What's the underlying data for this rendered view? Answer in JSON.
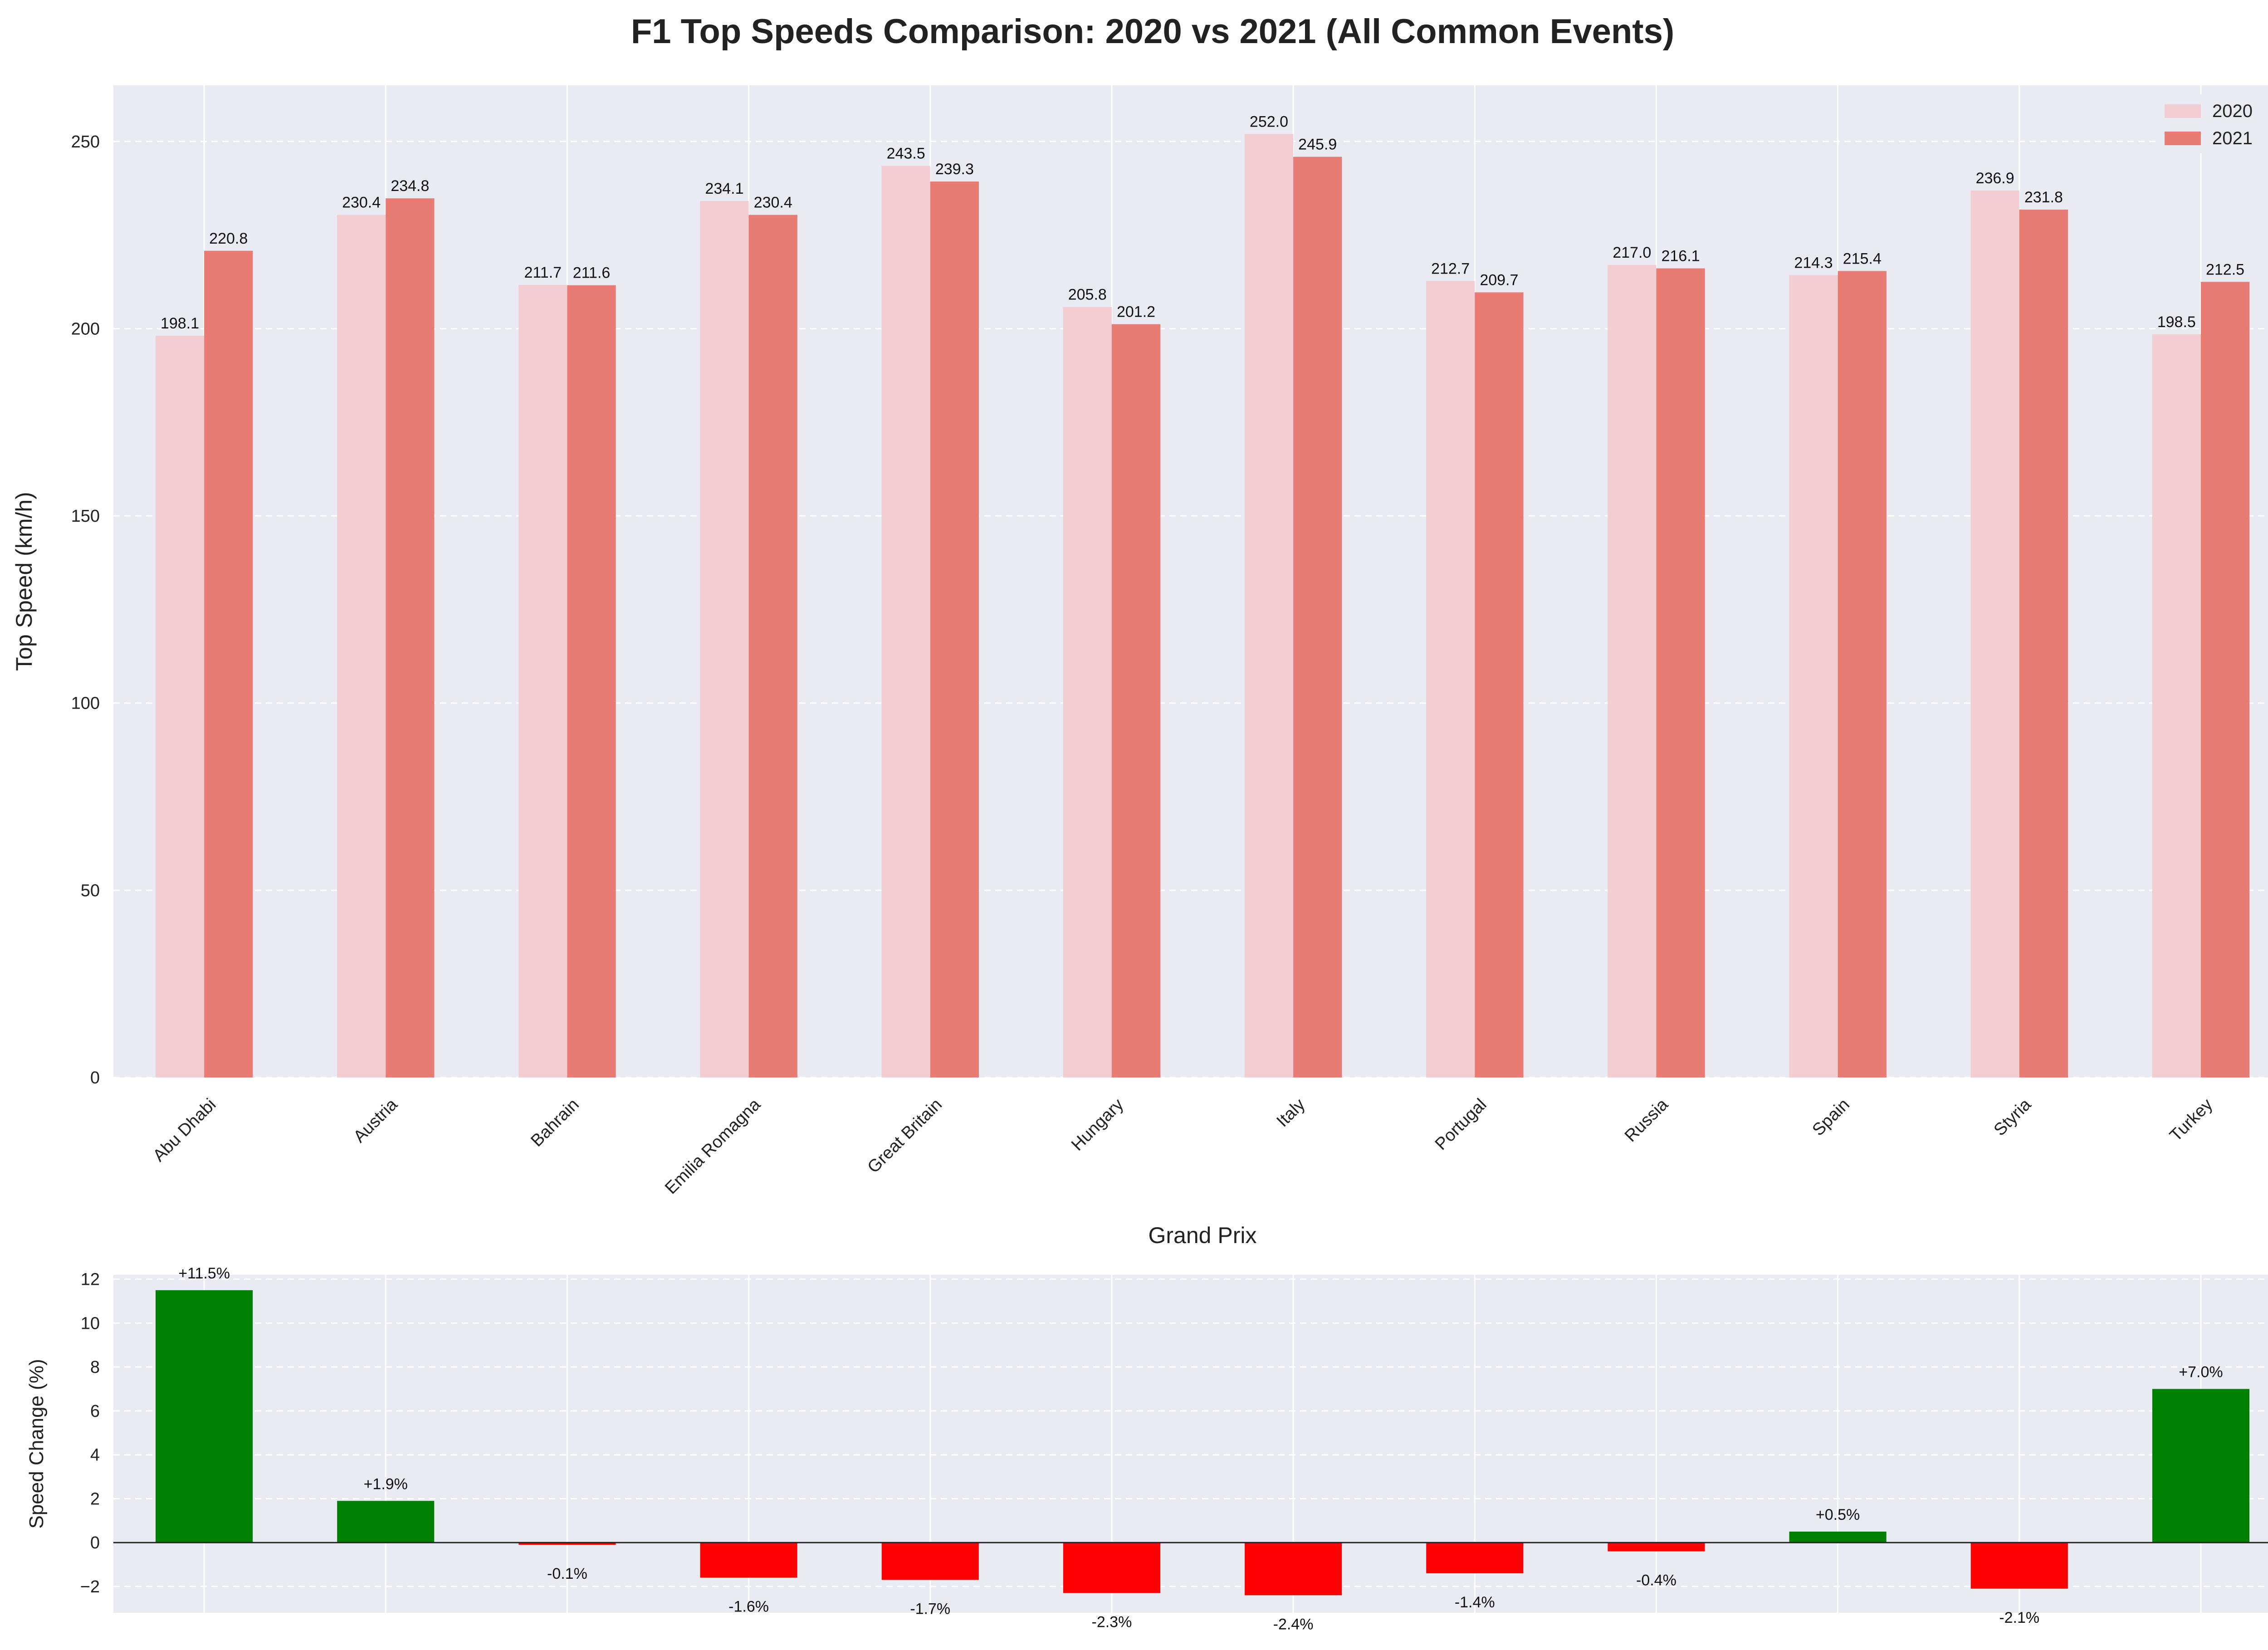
{
  "title": "F1 Top Speeds Comparison: 2020 vs 2021 (All Common Events)",
  "colors": {
    "series_2020": "#f2cdd1",
    "series_2021": "#e87b72",
    "positive": "#008000",
    "negative": "#ff0000",
    "plot_bg": "#eaeaf2",
    "grid": "#ffffff"
  },
  "chart_data": [
    {
      "type": "bar",
      "title": "F1 Top Speeds Comparison: 2020 vs 2021 (All Common Events)",
      "xlabel": "Grand Prix",
      "ylabel": "Top Speed (km/h)",
      "ylim": [
        0,
        265
      ],
      "yticks": [
        0,
        50,
        100,
        150,
        200,
        250
      ],
      "grid": true,
      "legend": "top-right",
      "categories": [
        "Abu Dhabi",
        "Austria",
        "Bahrain",
        "Emilia Romagna",
        "Great Britain",
        "Hungary",
        "Italy",
        "Portugal",
        "Russia",
        "Spain",
        "Styria",
        "Turkey"
      ],
      "series": [
        {
          "name": "2020",
          "values": [
            198.1,
            230.4,
            211.7,
            234.1,
            243.5,
            205.8,
            252.0,
            212.7,
            217.0,
            214.3,
            236.9,
            198.5
          ]
        },
        {
          "name": "2021",
          "values": [
            220.8,
            234.8,
            211.6,
            230.4,
            239.3,
            201.2,
            245.9,
            209.7,
            216.1,
            215.4,
            231.8,
            212.5
          ]
        }
      ],
      "value_labels_2020": [
        "198.1",
        "230.4",
        "211.7",
        "234.1",
        "243.5",
        "205.8",
        "252.0",
        "212.7",
        "217.0",
        "214.3",
        "236.9",
        "198.5"
      ],
      "value_labels_2021": [
        "220.8",
        "234.8",
        "211.6",
        "230.4",
        "239.3",
        "201.2",
        "245.9",
        "209.7",
        "216.1",
        "215.4",
        "231.8",
        "212.5"
      ]
    },
    {
      "type": "bar",
      "ylabel": "Speed Change (%)",
      "ylim": [
        -3.2,
        12.2
      ],
      "yticks": [
        -2,
        0,
        2,
        4,
        6,
        8,
        10,
        12
      ],
      "grid": true,
      "categories": [
        "Abu Dhabi",
        "Austria",
        "Bahrain",
        "Emilia Romagna",
        "Great Britain",
        "Hungary",
        "Italy",
        "Portugal",
        "Russia",
        "Spain",
        "Styria",
        "Turkey"
      ],
      "values": [
        11.5,
        1.9,
        -0.1,
        -1.6,
        -1.7,
        -2.3,
        -2.4,
        -1.4,
        -0.4,
        0.5,
        -2.1,
        7.0
      ],
      "value_labels": [
        "+11.5%",
        "+1.9%",
        "-0.1%",
        "-1.6%",
        "-1.7%",
        "-2.3%",
        "-2.4%",
        "-1.4%",
        "-0.4%",
        "+0.5%",
        "-2.1%",
        "+7.0%"
      ]
    }
  ]
}
